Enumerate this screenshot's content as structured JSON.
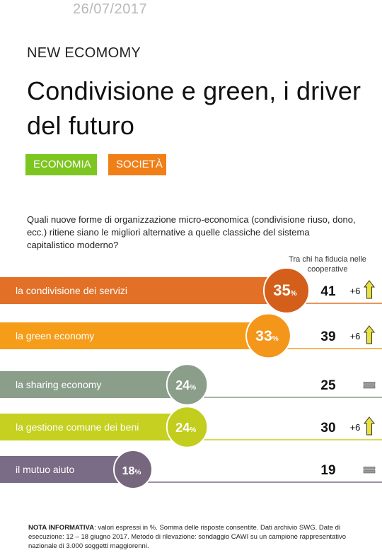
{
  "header": {
    "date": "26/07/2017",
    "kicker": "NEW ECOMOMY",
    "title": "Condivisione e green, i driver del futuro"
  },
  "tags": [
    {
      "label": "ECONOMIA",
      "color": "#7dc520"
    },
    {
      "label": "SOCIETÀ",
      "color": "#f07f18"
    }
  ],
  "chart_data": {
    "type": "bar",
    "title": "Quali nuove forme di organizzazione micro-economica (condivisione riuso, dono, ecc.) ritiene siano le migliori alternative a quelle classiche del sistema capitalistico moderno?",
    "unit": "%",
    "secondary_column_label": "Tra chi ha fiducia nelle cooperative",
    "ylim": [
      0,
      35
    ],
    "categories": [
      "la condivisione dei servizi",
      "la green economy",
      "la sharing economy",
      "la gestione comune dei beni",
      "il mutuo aiuto"
    ],
    "values": [
      35,
      33,
      24,
      24,
      18
    ],
    "trust_values": [
      41,
      39,
      25,
      30,
      19
    ],
    "trust_deltas": [
      "+6",
      "+6",
      "",
      "+6",
      ""
    ],
    "trend": [
      "up",
      "up",
      "equal",
      "up",
      "equal"
    ],
    "colors": [
      "#e27026",
      "#f59d19",
      "#8a9e8a",
      "#c5d020",
      "#7a6b86"
    ],
    "circle_colors": [
      "#d35f1b",
      "#f3961a",
      "#8a9e8a",
      "#c3cd1e",
      "#76677f"
    ]
  },
  "note": {
    "label": "NOTA INFORMATIVA",
    "text": ": valori espressi in %. Somma delle risposte consentite. Dati archivio SWG. Date di esecuzione: 12 – 18 giugno 2017. Metodo di rilevazione: sondaggio CAWI su un campione rappresentativo nazionale di 3.000 soggetti maggiorenni."
  }
}
